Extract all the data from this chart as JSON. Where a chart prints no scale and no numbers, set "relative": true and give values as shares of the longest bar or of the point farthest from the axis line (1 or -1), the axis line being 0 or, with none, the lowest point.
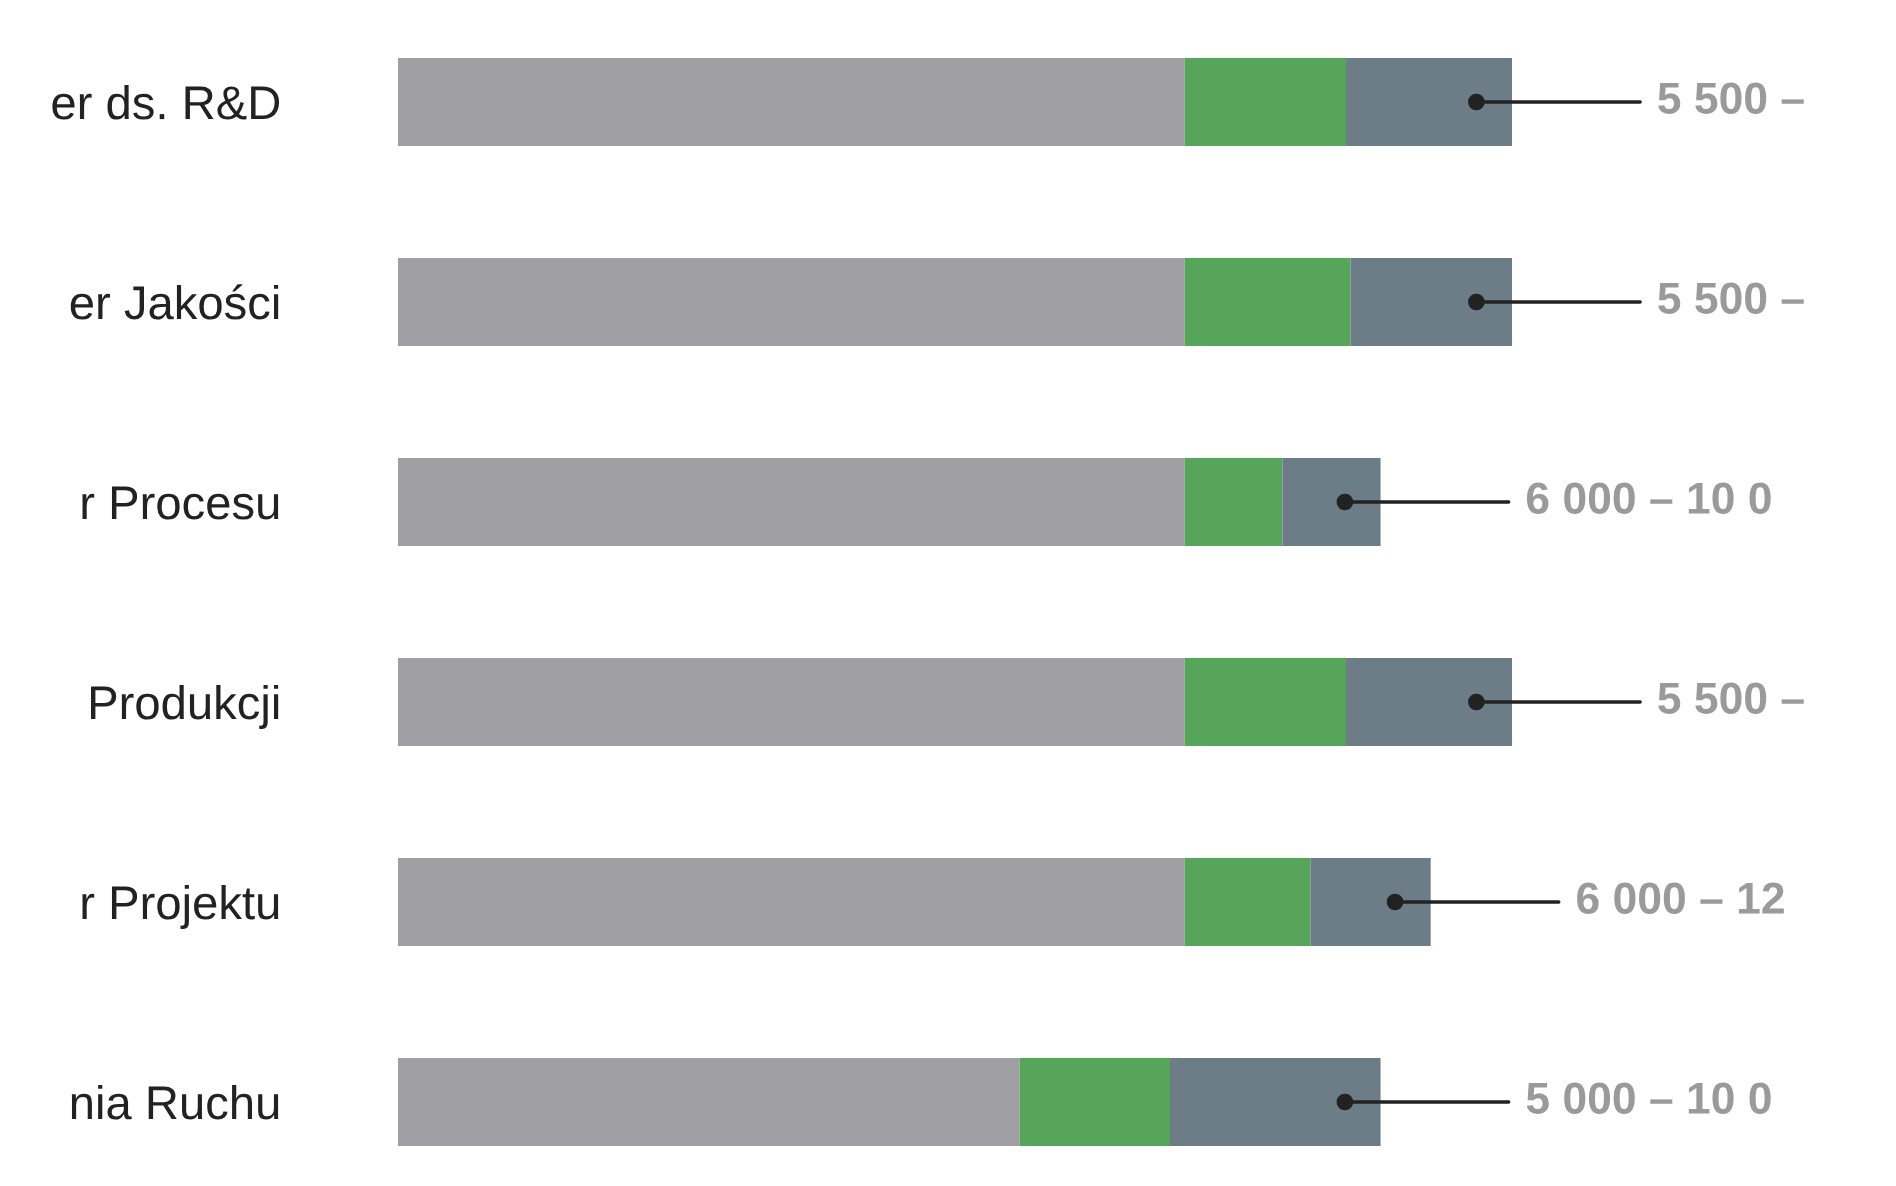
{
  "chart_data": {
    "type": "bar",
    "orientation": "horizontal",
    "stacked": true,
    "relative": true,
    "categories": [
      "er ds. R&D",
      "er Jakości",
      "r Procesu",
      "Produkcji",
      "r Projektu",
      "nia Ruchu"
    ],
    "series": [
      {
        "color": "#a09fa3",
        "values": [
          0.706,
          0.706,
          0.706,
          0.706,
          0.706,
          0.558
        ]
      },
      {
        "color": "#57a55a",
        "values": [
          0.145,
          0.149,
          0.088,
          0.145,
          0.113,
          0.135
        ]
      },
      {
        "color": "#6c7d88",
        "values": [
          0.149,
          0.145,
          0.088,
          0.149,
          0.108,
          0.189
        ]
      }
    ],
    "annotations": [
      "5 500 –",
      "5 500 –",
      "6 000 – 10 0",
      "5 500 –",
      "6 000 – 12",
      "5 000 – 10 0"
    ]
  }
}
